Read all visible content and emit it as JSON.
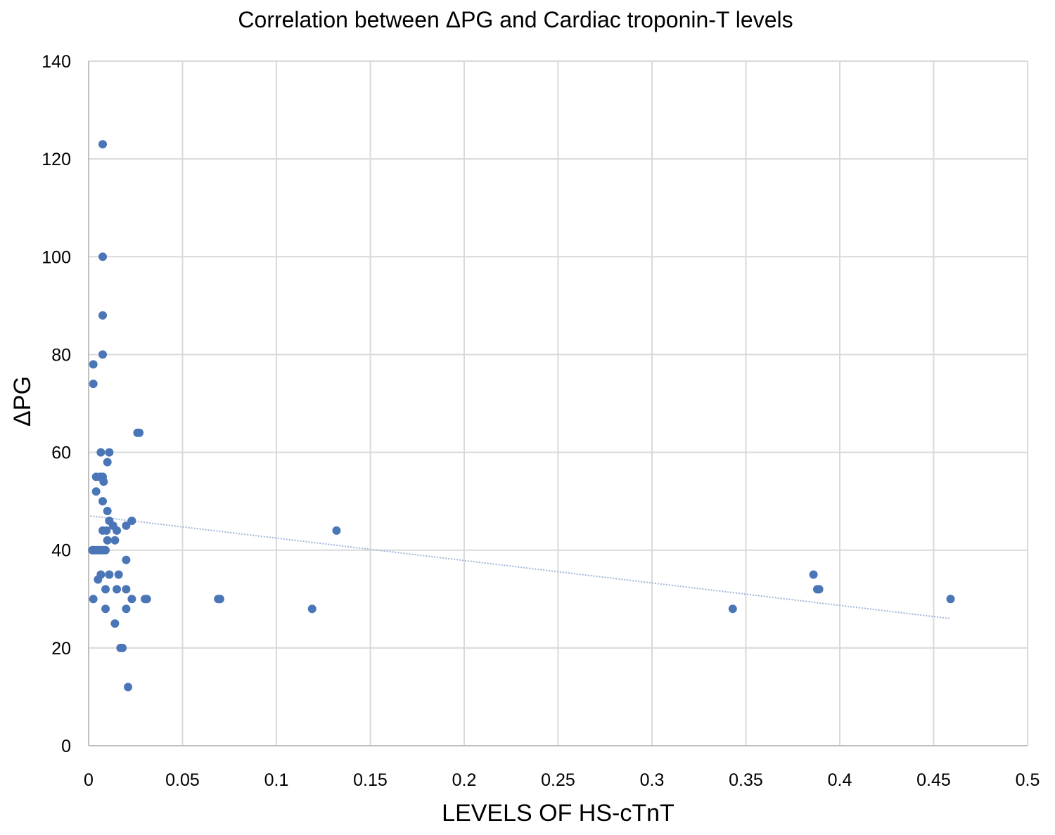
{
  "chart_data": {
    "type": "scatter",
    "title": "Correlation between ΔPG and Cardiac troponin-T levels",
    "xlabel": "LEVELS OF HS-cTnT",
    "ylabel": "ΔPG",
    "xlim": [
      0,
      0.5
    ],
    "ylim": [
      0,
      140
    ],
    "xticks": [
      0,
      0.05,
      0.1,
      0.15,
      0.2,
      0.25,
      0.3,
      0.35,
      0.4,
      0.45,
      0.5
    ],
    "xtick_labels": [
      "0",
      "0.05",
      "0.1",
      "0.15",
      "0.2",
      "0.25",
      "0.3",
      "0.35",
      "0.4",
      "0.45",
      "0.5"
    ],
    "yticks": [
      0,
      20,
      40,
      60,
      80,
      100,
      120,
      140
    ],
    "ytick_labels": [
      "0",
      "20",
      "40",
      "60",
      "80",
      "100",
      "120",
      "140"
    ],
    "grid": true,
    "legend": "none",
    "point_color": "#4a76b8",
    "trendline_color": "#9fb4d8",
    "trendline": {
      "x": [
        0.001,
        0.459
      ],
      "y": [
        47,
        26
      ]
    },
    "series": [
      {
        "name": "ΔPG vs HS-cTnT",
        "points": [
          [
            0.0075,
            123
          ],
          [
            0.0075,
            100
          ],
          [
            0.0075,
            88
          ],
          [
            0.0075,
            80
          ],
          [
            0.0025,
            78
          ],
          [
            0.0025,
            74
          ],
          [
            0.026,
            64
          ],
          [
            0.027,
            64
          ],
          [
            0.0065,
            60
          ],
          [
            0.011,
            60
          ],
          [
            0.01,
            58
          ],
          [
            0.004,
            55
          ],
          [
            0.006,
            55
          ],
          [
            0.0075,
            55
          ],
          [
            0.008,
            54
          ],
          [
            0.004,
            52
          ],
          [
            0.0075,
            50
          ],
          [
            0.01,
            48
          ],
          [
            0.023,
            46
          ],
          [
            0.011,
            46
          ],
          [
            0.02,
            45
          ],
          [
            0.013,
            45
          ],
          [
            0.015,
            44
          ],
          [
            0.0075,
            44
          ],
          [
            0.0095,
            44
          ],
          [
            0.132,
            44
          ],
          [
            0.01,
            42
          ],
          [
            0.014,
            42
          ],
          [
            0.002,
            40
          ],
          [
            0.003,
            40
          ],
          [
            0.004,
            40
          ],
          [
            0.005,
            40
          ],
          [
            0.006,
            40
          ],
          [
            0.0075,
            40
          ],
          [
            0.009,
            40
          ],
          [
            0.02,
            38
          ],
          [
            0.0065,
            35
          ],
          [
            0.011,
            35
          ],
          [
            0.016,
            35
          ],
          [
            0.386,
            35
          ],
          [
            0.005,
            34
          ],
          [
            0.009,
            32
          ],
          [
            0.015,
            32
          ],
          [
            0.02,
            32
          ],
          [
            0.388,
            32
          ],
          [
            0.389,
            32
          ],
          [
            0.0025,
            30
          ],
          [
            0.023,
            30
          ],
          [
            0.03,
            30
          ],
          [
            0.031,
            30
          ],
          [
            0.069,
            30
          ],
          [
            0.07,
            30
          ],
          [
            0.459,
            30
          ],
          [
            0.009,
            28
          ],
          [
            0.02,
            28
          ],
          [
            0.119,
            28
          ],
          [
            0.343,
            28
          ],
          [
            0.014,
            25
          ],
          [
            0.017,
            20
          ],
          [
            0.018,
            20
          ],
          [
            0.021,
            12
          ]
        ]
      }
    ]
  }
}
